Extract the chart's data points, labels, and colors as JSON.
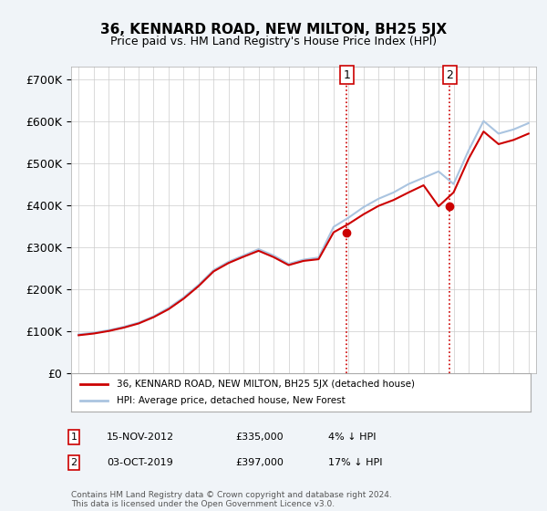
{
  "title": "36, KENNARD ROAD, NEW MILTON, BH25 5JX",
  "subtitle": "Price paid vs. HM Land Registry's House Price Index (HPI)",
  "ylabel_ticks": [
    "£0",
    "£100K",
    "£200K",
    "£300K",
    "£400K",
    "£500K",
    "£600K",
    "£700K"
  ],
  "ytick_values": [
    0,
    100000,
    200000,
    300000,
    400000,
    500000,
    600000,
    700000
  ],
  "ylim": [
    0,
    730000
  ],
  "background_color": "#f0f4f8",
  "plot_bg_color": "#ffffff",
  "hpi_color": "#aac4e0",
  "price_color": "#cc0000",
  "vline_color": "#cc0000",
  "vline_style": "dotted",
  "legend_label_price": "36, KENNARD ROAD, NEW MILTON, BH25 5JX (detached house)",
  "legend_label_hpi": "HPI: Average price, detached house, New Forest",
  "annotation1_label": "1",
  "annotation1_date": "15-NOV-2012",
  "annotation1_price": "£335,000",
  "annotation1_note": "4% ↓ HPI",
  "annotation2_label": "2",
  "annotation2_date": "03-OCT-2019",
  "annotation2_price": "£397,000",
  "annotation2_note": "17% ↓ HPI",
  "footer": "Contains HM Land Registry data © Crown copyright and database right 2024.\nThis data is licensed under the Open Government Licence v3.0.",
  "sale1_year": 2012.88,
  "sale1_price": 335000,
  "sale2_year": 2019.75,
  "sale2_price": 397000,
  "hpi_years": [
    1995,
    1996,
    1997,
    1998,
    1999,
    2000,
    2001,
    2002,
    2003,
    2004,
    2005,
    2006,
    2007,
    2008,
    2009,
    2010,
    2011,
    2012,
    2013,
    2014,
    2015,
    2016,
    2017,
    2018,
    2019,
    2020,
    2021,
    2022,
    2023,
    2024,
    2025
  ],
  "hpi_values": [
    92000,
    96000,
    102000,
    110000,
    120000,
    135000,
    155000,
    180000,
    210000,
    245000,
    265000,
    280000,
    295000,
    280000,
    260000,
    270000,
    275000,
    348000,
    370000,
    395000,
    415000,
    430000,
    450000,
    465000,
    480000,
    450000,
    530000,
    600000,
    570000,
    580000,
    595000
  ],
  "price_years": [
    1995,
    1996,
    1997,
    1998,
    1999,
    2000,
    2001,
    2002,
    2003,
    2004,
    2005,
    2006,
    2007,
    2008,
    2009,
    2010,
    2011,
    2012,
    2013,
    2014,
    2015,
    2016,
    2017,
    2018,
    2019,
    2020,
    2021,
    2022,
    2023,
    2024,
    2025
  ],
  "price_values": [
    90000,
    94000,
    100000,
    108000,
    118000,
    133000,
    152000,
    177000,
    207000,
    242000,
    262000,
    277000,
    291000,
    276000,
    257000,
    267000,
    271000,
    335000,
    355000,
    378000,
    398000,
    412000,
    430000,
    447000,
    397000,
    430000,
    510000,
    575000,
    545000,
    555000,
    570000
  ]
}
